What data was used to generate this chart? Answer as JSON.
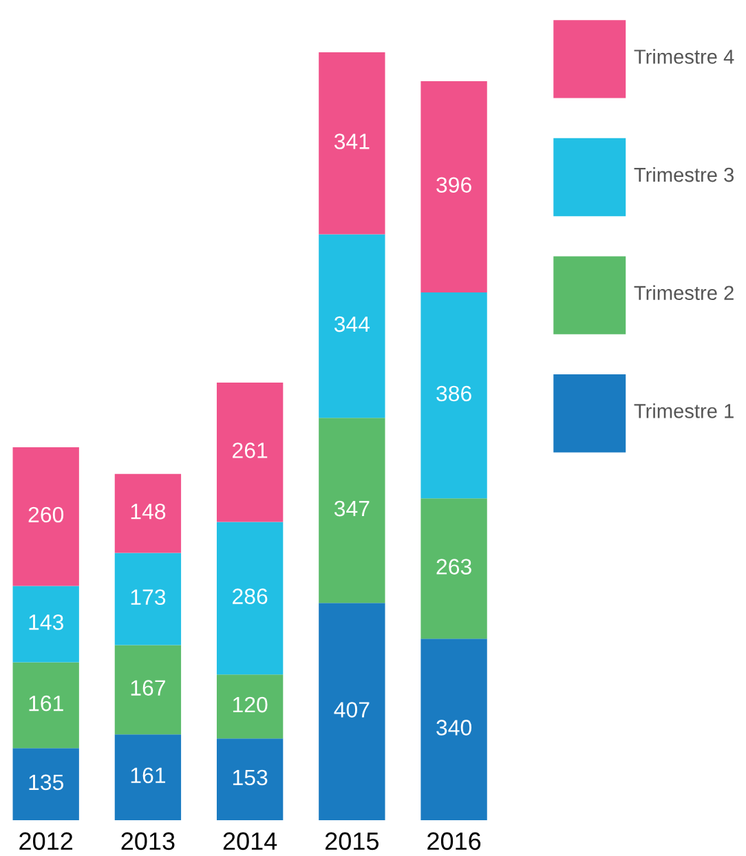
{
  "chart_data": {
    "type": "bar",
    "stacked": true,
    "categories": [
      "2012",
      "2013",
      "2014",
      "2015",
      "2016"
    ],
    "series": [
      {
        "name": "Trimestre 1",
        "color": "#1a7bc1",
        "values": [
          135,
          161,
          153,
          407,
          340
        ]
      },
      {
        "name": "Trimestre 2",
        "color": "#5bbb6a",
        "values": [
          161,
          167,
          120,
          347,
          263
        ]
      },
      {
        "name": "Trimestre 3",
        "color": "#22bfe4",
        "values": [
          143,
          173,
          286,
          344,
          386
        ]
      },
      {
        "name": "Trimestre 4",
        "color": "#f0528a",
        "values": [
          260,
          148,
          261,
          341,
          396
        ]
      }
    ],
    "data_labels": true,
    "legend": "right",
    "grid": false
  }
}
